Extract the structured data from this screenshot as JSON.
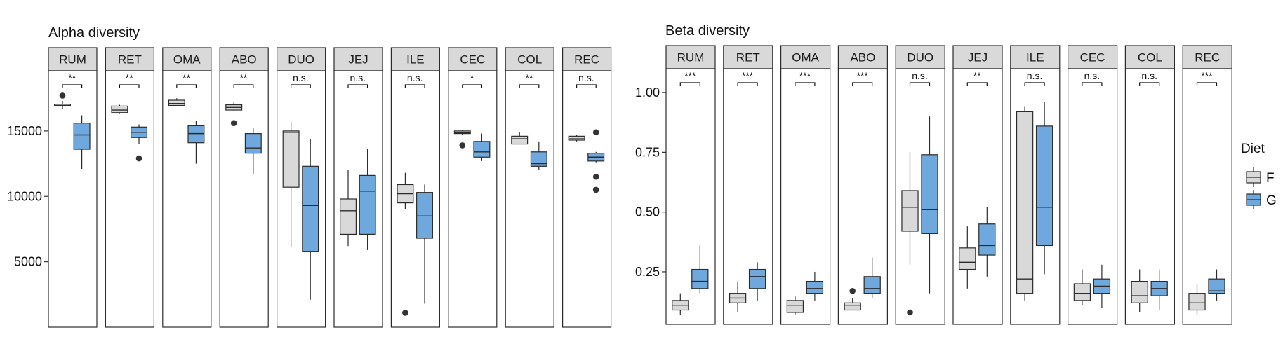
{
  "chart_data": [
    {
      "type": "box",
      "title": "Alpha diversity",
      "ylim": [
        0,
        19600
      ],
      "yticks": [
        5000,
        10000,
        15000
      ],
      "ytick_labels": [
        "5000",
        "10000",
        "15000"
      ],
      "facets": [
        {
          "label": "RUM",
          "sig": "**",
          "F": {
            "min": 16700,
            "q1": 16900,
            "median": 16950,
            "q3": 17050,
            "max": 17300,
            "outliers": [
              17700
            ]
          },
          "G": {
            "min": 12100,
            "q1": 13600,
            "median": 14700,
            "q3": 15600,
            "max": 16200,
            "outliers": []
          }
        },
        {
          "label": "RET",
          "sig": "**",
          "F": {
            "min": 16300,
            "q1": 16400,
            "median": 16600,
            "q3": 16900,
            "max": 17000,
            "outliers": []
          },
          "G": {
            "min": 14000,
            "q1": 14500,
            "median": 14900,
            "q3": 15300,
            "max": 15500,
            "outliers": [
              12900
            ]
          }
        },
        {
          "label": "OMA",
          "sig": "**",
          "F": {
            "min": 16900,
            "q1": 16950,
            "median": 17100,
            "q3": 17350,
            "max": 17500,
            "outliers": []
          },
          "G": {
            "min": 12500,
            "q1": 14100,
            "median": 14800,
            "q3": 15400,
            "max": 15800,
            "outliers": []
          }
        },
        {
          "label": "ABO",
          "sig": "**",
          "F": {
            "min": 16500,
            "q1": 16600,
            "median": 16800,
            "q3": 17000,
            "max": 17200,
            "outliers": [
              15600
            ]
          },
          "G": {
            "min": 11700,
            "q1": 13300,
            "median": 13700,
            "q3": 14800,
            "max": 15200,
            "outliers": []
          }
        },
        {
          "label": "DUO",
          "sig": "n.s.",
          "F": {
            "min": 6100,
            "q1": 10700,
            "median": 14900,
            "q3": 15000,
            "max": 15700,
            "outliers": []
          },
          "G": {
            "min": 2100,
            "q1": 5800,
            "median": 9300,
            "q3": 12300,
            "max": 14400,
            "outliers": []
          }
        },
        {
          "label": "JEJ",
          "sig": "n.s.",
          "F": {
            "min": 6200,
            "q1": 7100,
            "median": 8900,
            "q3": 9800,
            "max": 12000,
            "outliers": []
          },
          "G": {
            "min": 5900,
            "q1": 7100,
            "median": 10400,
            "q3": 11600,
            "max": 13600,
            "outliers": []
          }
        },
        {
          "label": "ILE",
          "sig": "n.s.",
          "F": {
            "min": 9000,
            "q1": 9500,
            "median": 10200,
            "q3": 10900,
            "max": 11800,
            "outliers": [
              1100
            ]
          },
          "G": {
            "min": 1800,
            "q1": 6800,
            "median": 8500,
            "q3": 10300,
            "max": 10900,
            "outliers": []
          }
        },
        {
          "label": "CEC",
          "sig": "*",
          "F": {
            "min": 14700,
            "q1": 14800,
            "median": 14850,
            "q3": 15000,
            "max": 15100,
            "outliers": [
              13900
            ]
          },
          "G": {
            "min": 12700,
            "q1": 13000,
            "median": 13400,
            "q3": 14200,
            "max": 14800,
            "outliers": []
          }
        },
        {
          "label": "COL",
          "sig": "**",
          "F": {
            "min": 14000,
            "q1": 14000,
            "median": 14400,
            "q3": 14600,
            "max": 14900,
            "outliers": []
          },
          "G": {
            "min": 12000,
            "q1": 12300,
            "median": 12500,
            "q3": 13400,
            "max": 14200,
            "outliers": []
          }
        },
        {
          "label": "REC",
          "sig": "n.s.",
          "F": {
            "min": 14200,
            "q1": 14300,
            "median": 14400,
            "q3": 14600,
            "max": 14700,
            "outliers": []
          },
          "G": {
            "min": 12600,
            "q1": 12700,
            "median": 13000,
            "q3": 13300,
            "max": 13400,
            "outliers": [
              11500,
              14900,
              10500
            ]
          }
        }
      ]
    },
    {
      "type": "box",
      "title": "Beta diversity",
      "ylim": [
        0.03,
        1.1
      ],
      "yticks": [
        0.25,
        0.5,
        0.75,
        1.0
      ],
      "ytick_labels": [
        "0.25",
        "0.50",
        "0.75",
        "1.00"
      ],
      "facets": [
        {
          "label": "RUM",
          "sig": "***",
          "F": {
            "min": 0.07,
            "q1": 0.09,
            "median": 0.11,
            "q3": 0.13,
            "max": 0.16,
            "outliers": []
          },
          "G": {
            "min": 0.16,
            "q1": 0.18,
            "median": 0.21,
            "q3": 0.26,
            "max": 0.36,
            "outliers": []
          }
        },
        {
          "label": "RET",
          "sig": "***",
          "F": {
            "min": 0.08,
            "q1": 0.12,
            "median": 0.14,
            "q3": 0.16,
            "max": 0.21,
            "outliers": []
          },
          "G": {
            "min": 0.13,
            "q1": 0.18,
            "median": 0.23,
            "q3": 0.26,
            "max": 0.29,
            "outliers": []
          }
        },
        {
          "label": "OMA",
          "sig": "***",
          "F": {
            "min": 0.07,
            "q1": 0.08,
            "median": 0.11,
            "q3": 0.13,
            "max": 0.15,
            "outliers": []
          },
          "G": {
            "min": 0.13,
            "q1": 0.16,
            "median": 0.18,
            "q3": 0.21,
            "max": 0.25,
            "outliers": []
          }
        },
        {
          "label": "ABO",
          "sig": "***",
          "F": {
            "min": 0.09,
            "q1": 0.09,
            "median": 0.11,
            "q3": 0.12,
            "max": 0.14,
            "outliers": [
              0.17
            ]
          },
          "G": {
            "min": 0.14,
            "q1": 0.16,
            "median": 0.18,
            "q3": 0.23,
            "max": 0.31,
            "outliers": []
          }
        },
        {
          "label": "DUO",
          "sig": "n.s.",
          "F": {
            "min": 0.28,
            "q1": 0.42,
            "median": 0.52,
            "q3": 0.59,
            "max": 0.75,
            "outliers": [
              0.08
            ]
          },
          "G": {
            "min": 0.16,
            "q1": 0.41,
            "median": 0.51,
            "q3": 0.74,
            "max": 0.9,
            "outliers": []
          }
        },
        {
          "label": "JEJ",
          "sig": "**",
          "F": {
            "min": 0.18,
            "q1": 0.26,
            "median": 0.29,
            "q3": 0.35,
            "max": 0.44,
            "outliers": []
          },
          "G": {
            "min": 0.23,
            "q1": 0.32,
            "median": 0.36,
            "q3": 0.45,
            "max": 0.52,
            "outliers": []
          }
        },
        {
          "label": "ILE",
          "sig": "n.s.",
          "F": {
            "min": 0.13,
            "q1": 0.16,
            "median": 0.22,
            "q3": 0.92,
            "max": 0.94,
            "outliers": []
          },
          "G": {
            "min": 0.24,
            "q1": 0.36,
            "median": 0.52,
            "q3": 0.86,
            "max": 0.96,
            "outliers": []
          }
        },
        {
          "label": "CEC",
          "sig": "n.s.",
          "F": {
            "min": 0.11,
            "q1": 0.13,
            "median": 0.16,
            "q3": 0.2,
            "max": 0.26,
            "outliers": []
          },
          "G": {
            "min": 0.1,
            "q1": 0.16,
            "median": 0.19,
            "q3": 0.22,
            "max": 0.28,
            "outliers": []
          }
        },
        {
          "label": "COL",
          "sig": "n.s.",
          "F": {
            "min": 0.08,
            "q1": 0.12,
            "median": 0.15,
            "q3": 0.21,
            "max": 0.26,
            "outliers": []
          },
          "G": {
            "min": 0.09,
            "q1": 0.15,
            "median": 0.18,
            "q3": 0.21,
            "max": 0.26,
            "outliers": []
          }
        },
        {
          "label": "REC",
          "sig": "***",
          "F": {
            "min": 0.07,
            "q1": 0.09,
            "median": 0.12,
            "q3": 0.16,
            "max": 0.2,
            "outliers": []
          },
          "G": {
            "min": 0.13,
            "q1": 0.16,
            "median": 0.17,
            "q3": 0.22,
            "max": 0.26,
            "outliers": []
          }
        }
      ]
    }
  ],
  "legend": {
    "title": "Diet",
    "position": "right",
    "items": [
      {
        "key": "F",
        "label": "F",
        "color": "#d9d9d9"
      },
      {
        "key": "G",
        "label": "G",
        "color": "#6fa8dc"
      }
    ]
  },
  "colors": {
    "F": "#d9d9d9",
    "G": "#6fa8dc",
    "strip": "#d9d9d9",
    "outline": "#2b2b2b"
  }
}
